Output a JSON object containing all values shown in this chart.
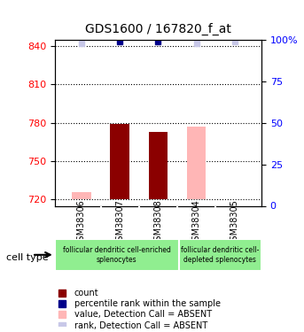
{
  "title": "GDS1600 / 167820_f_at",
  "samples": [
    "GSM38306",
    "GSM38307",
    "GSM38308",
    "GSM38304",
    "GSM38305"
  ],
  "ylim_left": [
    715,
    845
  ],
  "ylim_right": [
    0,
    100
  ],
  "yticks_left": [
    720,
    750,
    780,
    810,
    840
  ],
  "yticks_right": [
    0,
    25,
    50,
    75,
    100
  ],
  "ytick_labels_right": [
    "0",
    "25",
    "50",
    "75",
    "100%"
  ],
  "bar_values": [
    726,
    779,
    773,
    777,
    720
  ],
  "bar_absent": [
    true,
    false,
    false,
    true,
    true
  ],
  "rank_values": [
    98,
    99,
    99,
    98,
    99
  ],
  "rank_absent": [
    true,
    false,
    false,
    true,
    true
  ],
  "bar_color_present": "#8b0000",
  "bar_color_absent": "#ffb6b6",
  "rank_color_present": "#00008b",
  "rank_color_absent": "#c8c8e8",
  "bar_bottom": 720,
  "cell_type_groups": [
    {
      "label": "follicular dendritic cell-enriched\nsplenocytes",
      "samples": [
        "GSM38306",
        "GSM38307",
        "GSM38308"
      ],
      "color": "#90ee90"
    },
    {
      "label": "follicular dendritic cell-\ndepleted splenocytes",
      "samples": [
        "GSM38304",
        "GSM38305"
      ],
      "color": "#90ee90"
    }
  ],
  "legend_items": [
    {
      "label": "count",
      "color": "#8b0000",
      "marker": "s"
    },
    {
      "label": "percentile rank within the sample",
      "color": "#00008b",
      "marker": "s"
    },
    {
      "label": "value, Detection Call = ABSENT",
      "color": "#ffb6b6",
      "marker": "s"
    },
    {
      "label": "rank, Detection Call = ABSENT",
      "color": "#c8c8e8",
      "marker": "s"
    }
  ],
  "cell_type_label": "cell type",
  "background_color": "#ffffff",
  "plot_bg_color": "#ffffff",
  "grid_color": "#000000",
  "sample_box_color": "#d3d3d3"
}
